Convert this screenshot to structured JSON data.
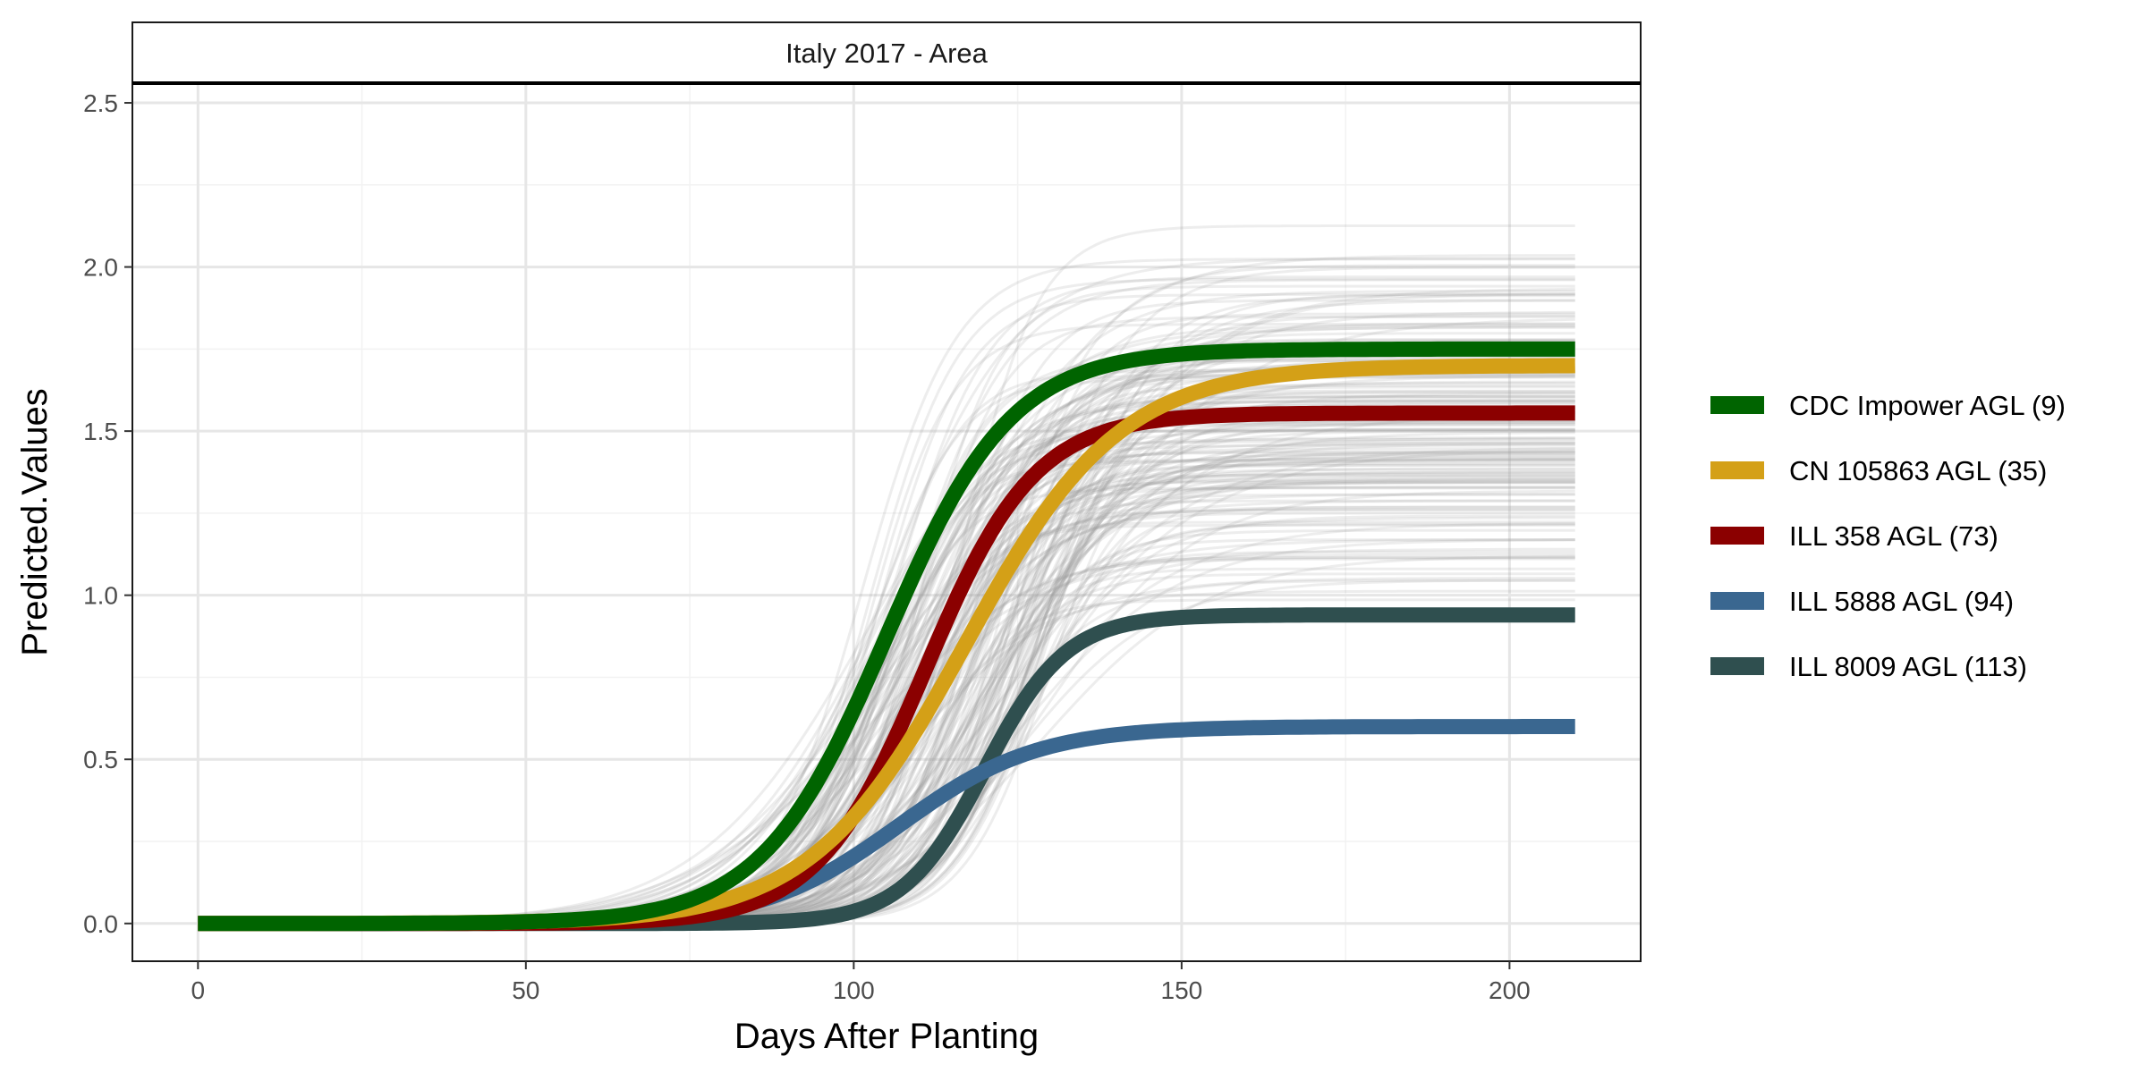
{
  "chart_data": {
    "type": "line",
    "title": "",
    "facet_label": "Italy 2017 - Area",
    "xlabel": "Days After Planting",
    "ylabel": "Predicted.Values",
    "xlim": [
      -10,
      220
    ],
    "ylim": [
      -0.115,
      2.56
    ],
    "x_ticks": [
      0,
      50,
      100,
      150,
      200
    ],
    "y_ticks": [
      0.0,
      0.5,
      1.0,
      1.5,
      2.0,
      2.5
    ],
    "x_tick_labels": [
      "0",
      "50",
      "100",
      "150",
      "200"
    ],
    "y_tick_labels": [
      "0.0",
      "0.5",
      "1.0",
      "1.5",
      "2.0",
      "2.5"
    ],
    "x_range": [
      0,
      210
    ],
    "grid": true,
    "legend_position": "right",
    "background_series": {
      "color": "#999999",
      "description_count": 180,
      "asymptote_range": [
        0.6,
        2.43
      ],
      "midpoint_range": [
        100,
        130
      ],
      "rate_range": [
        0.07,
        0.17
      ]
    },
    "series": [
      {
        "name": "CDC Impower AGL (9)",
        "color": "#006400",
        "asymptote": 1.75,
        "midpoint": 105,
        "rate": 0.105
      },
      {
        "name": "CN 105863 AGL (35)",
        "color": "#D4A017",
        "asymptote": 1.7,
        "midpoint": 117,
        "rate": 0.085
      },
      {
        "name": "ILL 358 AGL (73)",
        "color": "#8B0000",
        "asymptote": 1.555,
        "midpoint": 111,
        "rate": 0.12
      },
      {
        "name": "ILL 5888 AGL (94)",
        "color": "#3A6790",
        "asymptote": 0.6,
        "midpoint": 107,
        "rate": 0.095
      },
      {
        "name": "ILL 8009 AGL (113)",
        "color": "#2F4F4F",
        "asymptote": 0.94,
        "midpoint": 120,
        "rate": 0.16
      }
    ]
  }
}
